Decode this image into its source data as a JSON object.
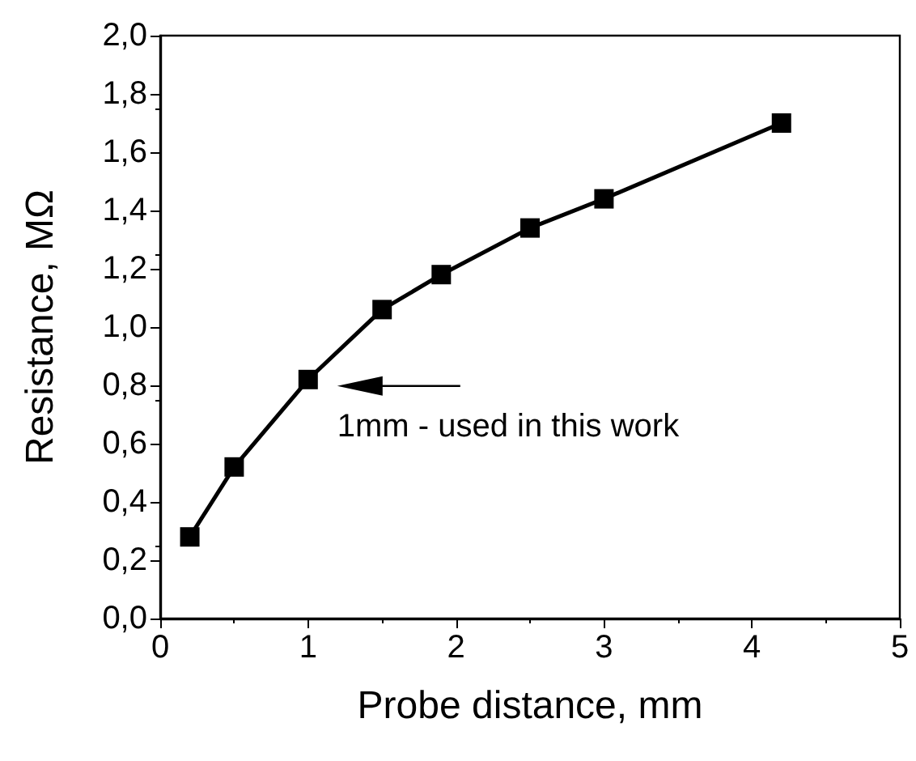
{
  "chart_data": {
    "type": "line",
    "xlabel": "Probe distance, mm",
    "ylabel": "Resistance, MΩ",
    "x": [
      0.2,
      0.5,
      1,
      1.5,
      1.9,
      2.5,
      3,
      4.2
    ],
    "series": [
      {
        "color": "#000000",
        "values": [
          0.28,
          0.52,
          0.82,
          1.06,
          1.18,
          1.34,
          1.44,
          1.7
        ]
      }
    ],
    "xlim": [
      0,
      5
    ],
    "xticks": [
      0,
      1,
      2,
      3,
      4,
      5
    ],
    "ylim": [
      0,
      2
    ],
    "yticks": [
      {
        "value": 0,
        "label": "0,0"
      },
      {
        "value": 0.2,
        "label": "0,2"
      },
      {
        "value": 0.4,
        "label": "0,4"
      },
      {
        "value": 0.6,
        "label": "0,6"
      },
      {
        "value": 0.8,
        "label": "0,8"
      },
      {
        "value": 1.0,
        "label": "1,0"
      },
      {
        "value": 1.2,
        "label": "1,2"
      },
      {
        "value": 1.4,
        "label": "1,4"
      },
      {
        "value": 1.6,
        "label": "1,6"
      },
      {
        "value": 1.8,
        "label": "1,8"
      },
      {
        "value": 2.0,
        "label": "2,0"
      }
    ],
    "annotations": [
      {
        "text": "1mm - used in this work",
        "x": 1,
        "y": 0.82
      }
    ],
    "marker": "square",
    "line_style": "solid"
  }
}
